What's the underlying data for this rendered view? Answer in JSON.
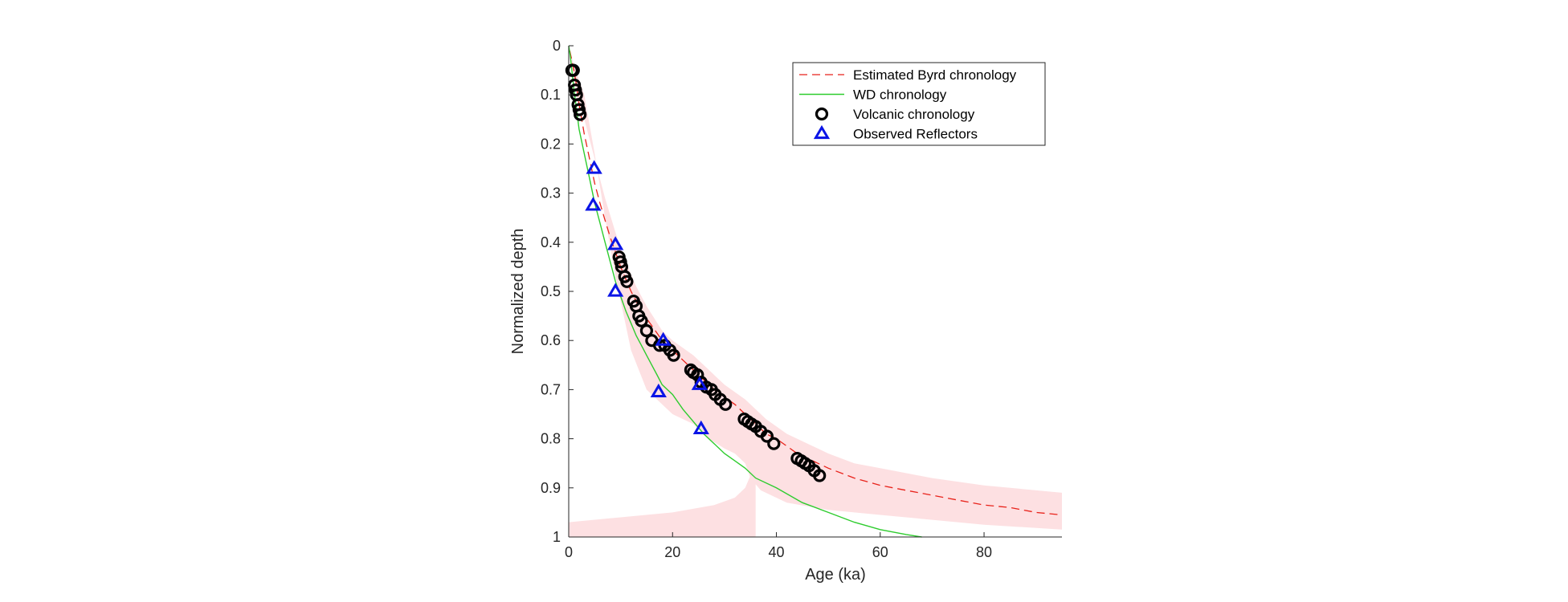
{
  "chart_data": {
    "type": "scatter",
    "xlabel": "Age (ka)",
    "ylabel": "Normalized depth",
    "xlim": [
      0,
      95
    ],
    "ylim": [
      0,
      1
    ],
    "y_reversed": true,
    "x_ticks": [
      0,
      20,
      40,
      60,
      80
    ],
    "y_ticks": [
      0,
      0.1,
      0.2,
      0.3,
      0.4,
      0.5,
      0.6,
      0.7,
      0.8,
      0.9,
      1
    ],
    "x_tick_labels": [
      "0",
      "20",
      "40",
      "60",
      "80"
    ],
    "y_tick_labels": [
      "0",
      "0.1",
      "0.2",
      "0.3",
      "0.4",
      "0.5",
      "0.6",
      "0.7",
      "0.8",
      "0.9",
      "1"
    ],
    "grid": false,
    "legend_position": "top-right",
    "colors": {
      "estimated": "#e8221a",
      "wd": "#2ecc2e",
      "volcanic": "#000000",
      "reflectors": "#0a14e6",
      "band": "#fde0e2"
    },
    "uncertainty_band": {
      "upper": [
        [
          0.5,
          0.03
        ],
        [
          1,
          0.07
        ],
        [
          2,
          0.12
        ],
        [
          3,
          0.15
        ],
        [
          5,
          0.23
        ],
        [
          7,
          0.31
        ],
        [
          9,
          0.38
        ],
        [
          11,
          0.44
        ],
        [
          13,
          0.49
        ],
        [
          15,
          0.53
        ],
        [
          18,
          0.58
        ],
        [
          20,
          0.6
        ],
        [
          24,
          0.63
        ],
        [
          27,
          0.66
        ],
        [
          30,
          0.69
        ],
        [
          34,
          0.72
        ],
        [
          38,
          0.76
        ],
        [
          42,
          0.79
        ],
        [
          46,
          0.81
        ],
        [
          50,
          0.83
        ],
        [
          55,
          0.85
        ],
        [
          60,
          0.86
        ],
        [
          70,
          0.88
        ],
        [
          80,
          0.895
        ],
        [
          95,
          0.91
        ]
      ],
      "lower": [
        [
          95,
          0.985
        ],
        [
          80,
          0.975
        ],
        [
          70,
          0.965
        ],
        [
          60,
          0.955
        ],
        [
          50,
          0.945
        ],
        [
          42,
          0.93
        ],
        [
          37,
          0.905
        ],
        [
          35,
          0.88
        ],
        [
          34,
          0.85
        ],
        [
          32,
          0.83
        ],
        [
          30,
          0.82
        ],
        [
          27,
          0.8
        ],
        [
          25,
          0.78
        ],
        [
          24,
          0.77
        ],
        [
          22,
          0.76
        ],
        [
          20,
          0.75
        ],
        [
          18,
          0.73
        ],
        [
          15,
          0.7
        ],
        [
          12,
          0.62
        ],
        [
          9,
          0.47
        ],
        [
          7,
          0.35
        ],
        [
          5,
          0.22
        ],
        [
          3,
          0.1
        ],
        [
          1,
          0.04
        ],
        [
          0.5,
          0.02
        ]
      ],
      "lower_tail": [
        [
          0,
          0.97
        ],
        [
          10,
          0.96
        ],
        [
          20,
          0.95
        ],
        [
          28,
          0.935
        ],
        [
          32,
          0.92
        ],
        [
          34,
          0.9
        ],
        [
          35,
          0.875
        ],
        [
          36,
          0.86
        ]
      ]
    },
    "series": [
      {
        "name": "Estimated Byrd chronology",
        "style": "dashed-line",
        "points": [
          [
            0.2,
            0.01
          ],
          [
            0.6,
            0.03
          ],
          [
            1,
            0.05
          ],
          [
            1.5,
            0.08
          ],
          [
            2,
            0.12
          ],
          [
            2.5,
            0.15
          ],
          [
            3,
            0.18
          ],
          [
            4,
            0.23
          ],
          [
            5,
            0.28
          ],
          [
            6,
            0.32
          ],
          [
            7,
            0.355
          ],
          [
            8,
            0.39
          ],
          [
            9,
            0.42
          ],
          [
            10,
            0.45
          ],
          [
            11,
            0.475
          ],
          [
            12,
            0.5
          ],
          [
            13,
            0.52
          ],
          [
            14,
            0.54
          ],
          [
            15,
            0.555
          ],
          [
            16,
            0.57
          ],
          [
            17,
            0.585
          ],
          [
            18,
            0.6
          ],
          [
            20,
            0.62
          ],
          [
            22,
            0.64
          ],
          [
            24,
            0.66
          ],
          [
            26,
            0.68
          ],
          [
            28,
            0.7
          ],
          [
            30,
            0.715
          ],
          [
            32,
            0.73
          ],
          [
            34,
            0.75
          ],
          [
            36,
            0.77
          ],
          [
            38,
            0.79
          ],
          [
            40,
            0.8
          ],
          [
            42,
            0.815
          ],
          [
            44,
            0.83
          ],
          [
            46,
            0.84
          ],
          [
            48,
            0.85
          ],
          [
            50,
            0.86
          ],
          [
            55,
            0.88
          ],
          [
            60,
            0.895
          ],
          [
            65,
            0.905
          ],
          [
            70,
            0.915
          ],
          [
            75,
            0.925
          ],
          [
            80,
            0.935
          ],
          [
            85,
            0.94
          ],
          [
            90,
            0.95
          ],
          [
            95,
            0.955
          ]
        ]
      },
      {
        "name": "WD chronology",
        "style": "solid-line",
        "points": [
          [
            0,
            0
          ],
          [
            0.3,
            0.02
          ],
          [
            0.6,
            0.05
          ],
          [
            1,
            0.09
          ],
          [
            1.5,
            0.13
          ],
          [
            2,
            0.17
          ],
          [
            3,
            0.22
          ],
          [
            4,
            0.27
          ],
          [
            5,
            0.32
          ],
          [
            6,
            0.36
          ],
          [
            7,
            0.4
          ],
          [
            8,
            0.44
          ],
          [
            9,
            0.48
          ],
          [
            10,
            0.51
          ],
          [
            11,
            0.54
          ],
          [
            12,
            0.565
          ],
          [
            13,
            0.59
          ],
          [
            14,
            0.61
          ],
          [
            15,
            0.63
          ],
          [
            16,
            0.65
          ],
          [
            17,
            0.67
          ],
          [
            18,
            0.69
          ],
          [
            20,
            0.71
          ],
          [
            22,
            0.74
          ],
          [
            24,
            0.765
          ],
          [
            26,
            0.79
          ],
          [
            28,
            0.81
          ],
          [
            30,
            0.83
          ],
          [
            32,
            0.845
          ],
          [
            34,
            0.86
          ],
          [
            36,
            0.88
          ],
          [
            40,
            0.9
          ],
          [
            45,
            0.93
          ],
          [
            50,
            0.95
          ],
          [
            55,
            0.97
          ],
          [
            60,
            0.985
          ],
          [
            65,
            0.995
          ],
          [
            68,
            1
          ]
        ]
      },
      {
        "name": "Volcanic chronology",
        "style": "circle",
        "points": [
          [
            0.6,
            0.05
          ],
          [
            0.9,
            0.05
          ],
          [
            1.1,
            0.08
          ],
          [
            1.3,
            0.09
          ],
          [
            1.5,
            0.1
          ],
          [
            1.8,
            0.12
          ],
          [
            2.0,
            0.13
          ],
          [
            2.2,
            0.14
          ],
          [
            9.7,
            0.43
          ],
          [
            10.0,
            0.44
          ],
          [
            10.2,
            0.45
          ],
          [
            10.8,
            0.47
          ],
          [
            11.2,
            0.48
          ],
          [
            12.5,
            0.52
          ],
          [
            13.0,
            0.53
          ],
          [
            13.5,
            0.55
          ],
          [
            14.0,
            0.56
          ],
          [
            15.0,
            0.58
          ],
          [
            16.0,
            0.6
          ],
          [
            17.5,
            0.61
          ],
          [
            18.5,
            0.61
          ],
          [
            19.5,
            0.62
          ],
          [
            20.2,
            0.63
          ],
          [
            23.5,
            0.66
          ],
          [
            24.0,
            0.665
          ],
          [
            24.8,
            0.67
          ],
          [
            25.5,
            0.685
          ],
          [
            26.5,
            0.695
          ],
          [
            27.5,
            0.7
          ],
          [
            28.2,
            0.71
          ],
          [
            29.2,
            0.72
          ],
          [
            30.2,
            0.73
          ],
          [
            33.8,
            0.76
          ],
          [
            34.5,
            0.765
          ],
          [
            35.2,
            0.77
          ],
          [
            36.0,
            0.775
          ],
          [
            37.0,
            0.785
          ],
          [
            38.2,
            0.795
          ],
          [
            39.5,
            0.81
          ],
          [
            44.0,
            0.84
          ],
          [
            44.8,
            0.845
          ],
          [
            45.5,
            0.85
          ],
          [
            46.3,
            0.855
          ],
          [
            47.3,
            0.865
          ],
          [
            48.3,
            0.875
          ]
        ]
      },
      {
        "name": "Observed Reflectors",
        "style": "triangle",
        "points": [
          [
            4.9,
            0.25
          ],
          [
            4.7,
            0.325
          ],
          [
            9.0,
            0.405
          ],
          [
            9.0,
            0.5
          ],
          [
            18.2,
            0.6
          ],
          [
            17.3,
            0.705
          ],
          [
            25.2,
            0.69
          ],
          [
            25.5,
            0.78
          ]
        ]
      }
    ]
  }
}
